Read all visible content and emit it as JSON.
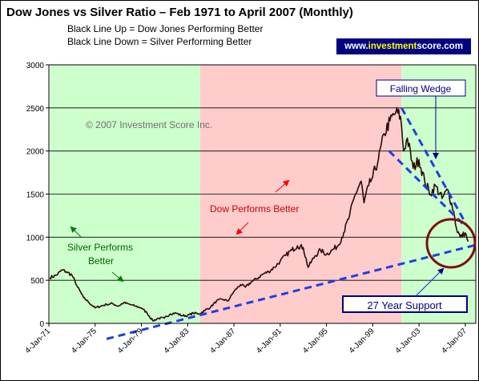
{
  "header": {
    "title": "Dow Jones vs Silver Ratio – Feb 1971 to April 2007 (Monthly)",
    "line1": "Black Line Up = Dow Jones Performing Better",
    "line2": "Black Line Down = Silver Performing Better"
  },
  "brand": {
    "prefix": "www.",
    "highlight": "investment",
    "suffix": "score.com"
  },
  "colors": {
    "silver_zone": "#ccffcc",
    "dow_zone": "#ffcccc",
    "ratio_line": "#2a0a0a",
    "trend_lines": "#1f3fe0",
    "box_text": "#000080",
    "circle": "#7a1010",
    "arrow_red": "#ff0000",
    "arrow_green": "#008000"
  },
  "chart_data": {
    "type": "line",
    "title": "Dow Jones vs Silver Ratio – Feb 1971 to April 2007 (Monthly)",
    "xlabel": "",
    "ylabel": "",
    "ylim": [
      0,
      3000
    ],
    "yticks": [
      "0",
      "500",
      "1000",
      "1500",
      "2000",
      "2500",
      "3000"
    ],
    "xlim": [
      "1971-01-04",
      "2007-12-01"
    ],
    "xticks": [
      {
        "date": "1971-01-04",
        "label": "4-Jan-71"
      },
      {
        "date": "1975-01-04",
        "label": "4-Jan-75"
      },
      {
        "date": "1979-01-04",
        "label": "4-Jan-79"
      },
      {
        "date": "1983-01-04",
        "label": "4-Jan-83"
      },
      {
        "date": "1987-01-04",
        "label": "4-Jan-87"
      },
      {
        "date": "1991-01-04",
        "label": "4-Jan-91"
      },
      {
        "date": "1995-01-04",
        "label": "4-Jan-95"
      },
      {
        "date": "1999-01-04",
        "label": "4-Jan-99"
      },
      {
        "date": "2003-01-04",
        "label": "4-Jan-03"
      },
      {
        "date": "2007-01-04",
        "label": "4-Jan-07"
      }
    ],
    "grid": true,
    "legend": "none",
    "zones": [
      {
        "start": "1971-02-01",
        "end": "1984-02-01",
        "kind": "silver"
      },
      {
        "start": "1984-02-01",
        "end": "2001-07-01",
        "kind": "dow"
      },
      {
        "start": "2001-07-01",
        "end": "2007-12-01",
        "kind": "silver"
      }
    ],
    "series": [
      {
        "x": [
          "1971-02-01",
          "1971-09-01",
          "1972-03-01",
          "1972-07-01",
          "1973-01-01",
          "1973-07-01",
          "1974-01-01",
          "1974-06-01",
          "1975-01-01",
          "1975-07-01",
          "1976-01-01",
          "1976-07-01",
          "1977-01-01",
          "1977-07-01",
          "1978-01-01",
          "1978-07-01",
          "1979-01-01",
          "1979-07-01",
          "1980-01-01",
          "1980-07-01",
          "1981-01-01",
          "1981-07-01",
          "1982-01-01",
          "1982-07-01",
          "1983-01-01",
          "1983-07-01",
          "1984-01-01",
          "1984-07-01",
          "1985-01-01",
          "1985-07-01",
          "1986-01-01",
          "1986-07-01",
          "1987-01-01",
          "1987-08-01",
          "1988-01-01",
          "1988-07-01",
          "1989-01-01",
          "1989-07-01",
          "1990-01-01",
          "1990-07-01",
          "1991-01-01",
          "1991-07-01",
          "1992-01-01",
          "1992-07-01",
          "1993-01-01",
          "1993-06-01",
          "1994-01-01",
          "1994-07-01",
          "1995-01-01",
          "1995-07-01",
          "1996-01-01",
          "1996-07-01",
          "1997-01-01",
          "1997-07-01",
          "1998-01-01",
          "1998-04-01",
          "1998-09-01",
          "1999-01-01",
          "1999-07-01",
          "2000-01-01",
          "2000-07-01",
          "2001-01-01",
          "2001-06-01",
          "2001-09-01",
          "2002-01-01",
          "2002-07-01",
          "2003-01-01",
          "2003-07-01",
          "2004-01-01",
          "2004-06-01",
          "2005-01-01",
          "2005-07-01",
          "2006-01-01",
          "2006-04-01",
          "2006-08-01",
          "2007-01-01",
          "2007-04-01"
        ],
        "y": [
          530,
          560,
          620,
          600,
          560,
          420,
          300,
          250,
          180,
          200,
          220,
          230,
          200,
          240,
          220,
          200,
          180,
          120,
          30,
          60,
          60,
          110,
          120,
          90,
          90,
          120,
          110,
          150,
          190,
          260,
          280,
          260,
          370,
          450,
          420,
          480,
          520,
          570,
          600,
          650,
          720,
          790,
          850,
          900,
          880,
          650,
          780,
          850,
          800,
          850,
          900,
          1050,
          1250,
          1500,
          1650,
          1400,
          1600,
          1700,
          1900,
          2200,
          2350,
          2450,
          2400,
          2000,
          2150,
          1800,
          1900,
          1650,
          1500,
          1600,
          1450,
          1550,
          1300,
          1100,
          1000,
          1050,
          950
        ]
      }
    ],
    "annotations": [
      {
        "text": "Falling Wedge"
      },
      {
        "text": "27 Year Support"
      },
      {
        "text": "Dow Performs Better"
      },
      {
        "text": "Silver Performs Better"
      },
      {
        "text": "© 2007 Investment Score Inc."
      }
    ]
  }
}
